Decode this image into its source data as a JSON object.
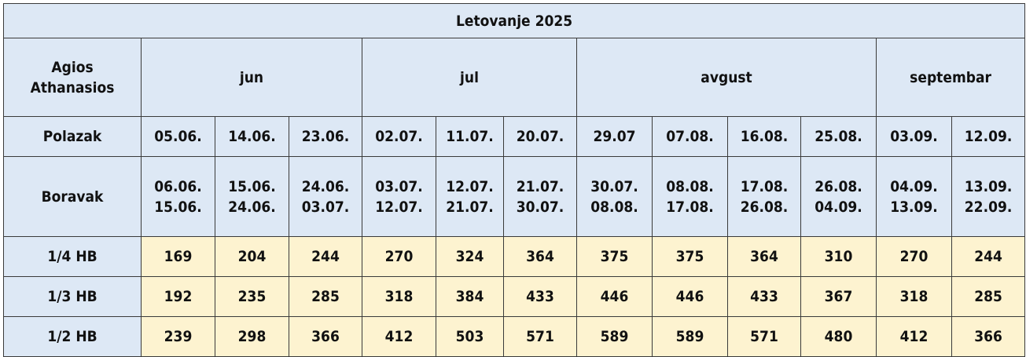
{
  "title": "Letovanje 2025",
  "destination": {
    "line1": "Agios",
    "line2": "Athanasios"
  },
  "months": [
    {
      "name": "jun",
      "span": 3
    },
    {
      "name": "jul",
      "span": 3
    },
    {
      "name": "avgust",
      "span": 4
    },
    {
      "name": "septembar",
      "span": 2
    }
  ],
  "polazak": {
    "label": "Polazak",
    "dates": [
      "05.06.",
      "14.06.",
      "23.06.",
      "02.07.",
      "11.07.",
      "20.07.",
      "29.07",
      "07.08.",
      "16.08.",
      "25.08.",
      "03.09.",
      "12.09."
    ]
  },
  "boravak": {
    "label": "Boravak",
    "ranges": [
      [
        "06.06.",
        "15.06."
      ],
      [
        "15.06.",
        "24.06."
      ],
      [
        "24.06.",
        "03.07."
      ],
      [
        "03.07.",
        "12.07."
      ],
      [
        "12.07.",
        "21.07."
      ],
      [
        "21.07.",
        "30.07."
      ],
      [
        "30.07.",
        "08.08."
      ],
      [
        "08.08.",
        "17.08."
      ],
      [
        "17.08.",
        "26.08."
      ],
      [
        "26.08.",
        "04.09."
      ],
      [
        "04.09.",
        "13.09."
      ],
      [
        "13.09.",
        "22.09."
      ]
    ]
  },
  "prices": [
    {
      "label": "1/4 HB",
      "values": [
        "169",
        "204",
        "244",
        "270",
        "324",
        "364",
        "375",
        "375",
        "364",
        "310",
        "270",
        "244"
      ]
    },
    {
      "label": "1/3 HB",
      "values": [
        "192",
        "235",
        "285",
        "318",
        "384",
        "433",
        "446",
        "446",
        "433",
        "367",
        "318",
        "285"
      ]
    },
    {
      "label": "1/2 HB",
      "values": [
        "239",
        "298",
        "366",
        "412",
        "503",
        "571",
        "589",
        "589",
        "571",
        "480",
        "412",
        "366"
      ]
    }
  ],
  "colors": {
    "header_bg": "#dde8f5",
    "price_bg": "#fdf3d0",
    "border": "#3a3a3a"
  }
}
